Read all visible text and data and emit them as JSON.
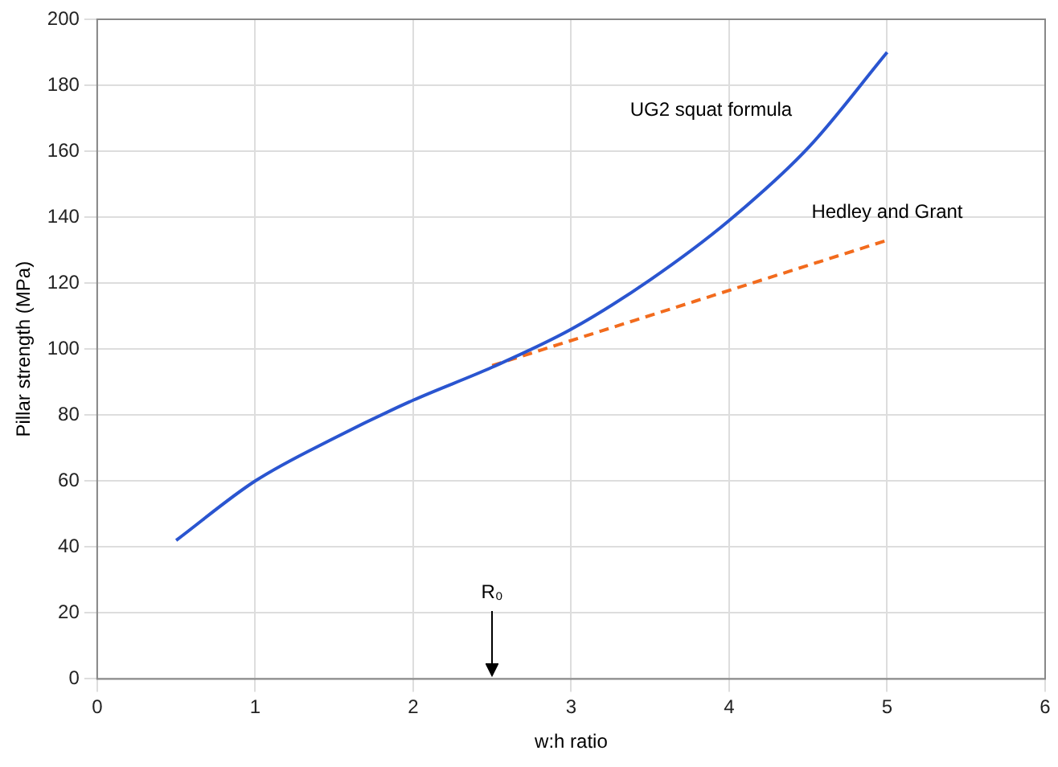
{
  "chart_data": {
    "type": "line",
    "xlabel": "w:h ratio",
    "ylabel": "Pillar strength (MPa)",
    "xlim": [
      0,
      6
    ],
    "xticks": [
      0,
      1,
      2,
      3,
      4,
      5,
      6
    ],
    "ylim": [
      0,
      200
    ],
    "yticks": [
      0,
      20,
      40,
      60,
      80,
      100,
      120,
      140,
      160,
      180,
      200
    ],
    "grid": true,
    "legend": false,
    "marker": "none",
    "series": [
      {
        "name": "UG2 squat formula",
        "color": "#2a55d0",
        "line_style": "solid",
        "x": [
          0.5,
          1,
          1.5,
          2,
          2.5,
          3,
          3.5,
          4,
          4.5,
          5
        ],
        "values": [
          42,
          60,
          73,
          84.5,
          94.5,
          106,
          121,
          139,
          161,
          190
        ]
      },
      {
        "name": "Hedley and Grant",
        "color": "#f26b1d",
        "line_style": "dashed",
        "x": [
          2.5,
          5
        ],
        "values": [
          95,
          133
        ]
      }
    ],
    "annotations": [
      {
        "text": "R₀",
        "x": 2.5
      }
    ]
  }
}
